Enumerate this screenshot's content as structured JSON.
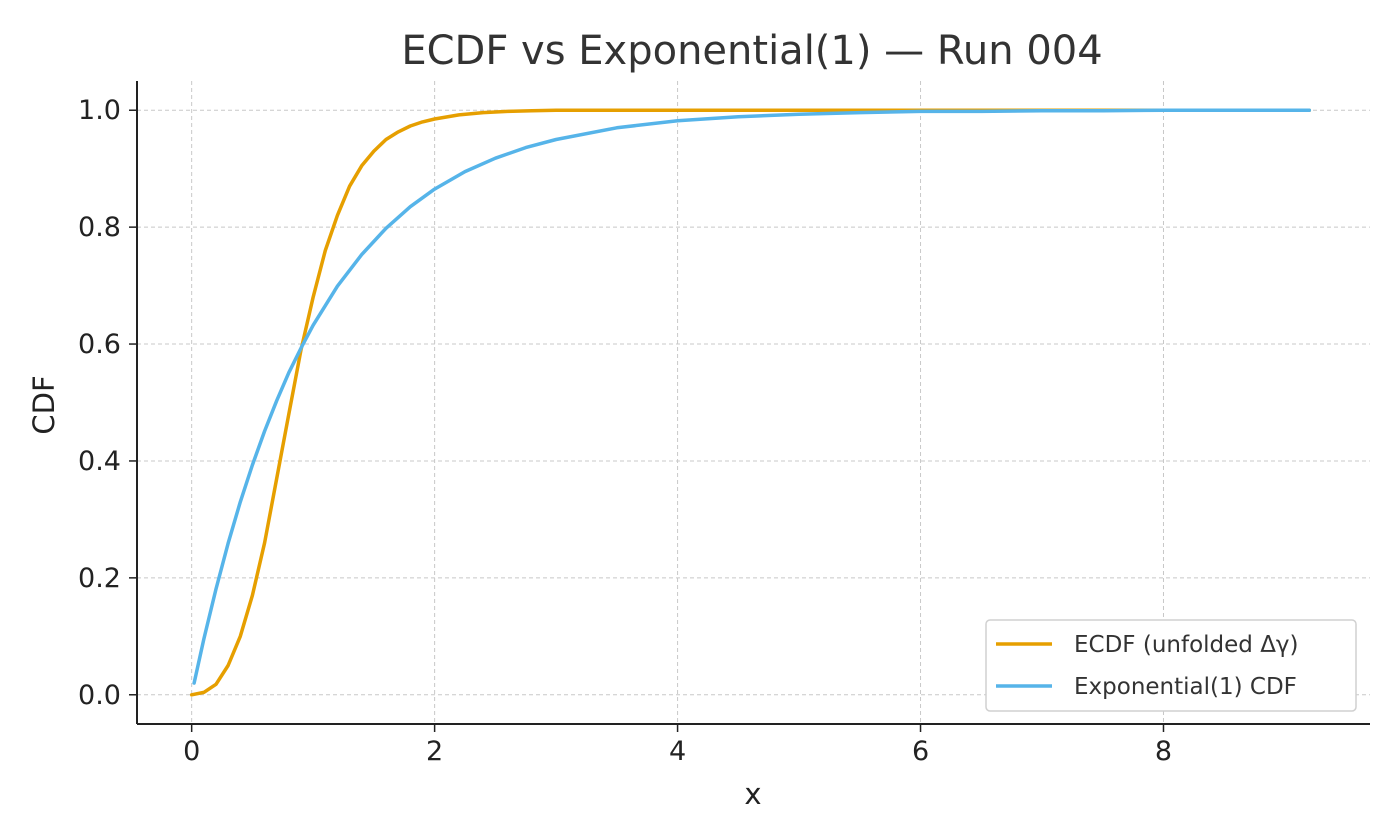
{
  "chart_data": {
    "type": "line",
    "title": "ECDF vs Exponential(1) — Run 004",
    "xlabel": "x",
    "ylabel": "CDF",
    "xlim": [
      -0.45,
      9.7
    ],
    "ylim": [
      -0.05,
      1.05
    ],
    "xticks": [
      0,
      2,
      4,
      6,
      8
    ],
    "xtick_labels": [
      "0",
      "2",
      "4",
      "6",
      "8"
    ],
    "yticks": [
      0.0,
      0.2,
      0.4,
      0.6,
      0.8,
      1.0
    ],
    "ytick_labels": [
      "0.0",
      "0.2",
      "0.4",
      "0.6",
      "0.8",
      "1.0"
    ],
    "grid": true,
    "legend_position": "bottom-right",
    "series": [
      {
        "name": "ECDF (unfolded Δγ)",
        "color": "#E69F00",
        "x": [
          0.0,
          0.1,
          0.2,
          0.3,
          0.4,
          0.5,
          0.6,
          0.7,
          0.8,
          0.9,
          1.0,
          1.1,
          1.2,
          1.3,
          1.4,
          1.5,
          1.6,
          1.7,
          1.8,
          1.9,
          2.0,
          2.2,
          2.4,
          2.6,
          2.8,
          3.0,
          3.5,
          4.0,
          5.0,
          6.0,
          7.0,
          8.0,
          9.2
        ],
        "y": [
          0.0,
          0.004,
          0.018,
          0.05,
          0.1,
          0.17,
          0.26,
          0.37,
          0.48,
          0.59,
          0.68,
          0.76,
          0.82,
          0.87,
          0.905,
          0.93,
          0.95,
          0.963,
          0.973,
          0.98,
          0.985,
          0.992,
          0.996,
          0.998,
          0.999,
          1.0,
          1.0,
          1.0,
          1.0,
          1.0,
          1.0,
          1.0,
          1.0
        ]
      },
      {
        "name": "Exponential(1) CDF",
        "color": "#56B4E9",
        "x": [
          0.02,
          0.1,
          0.2,
          0.3,
          0.4,
          0.5,
          0.6,
          0.7,
          0.8,
          0.9,
          1.0,
          1.2,
          1.4,
          1.6,
          1.8,
          2.0,
          2.25,
          2.5,
          2.75,
          3.0,
          3.5,
          4.0,
          4.5,
          5.0,
          5.5,
          6.0,
          6.5,
          7.0,
          7.5,
          8.0,
          8.5,
          9.2
        ],
        "y": [
          0.02,
          0.095,
          0.181,
          0.259,
          0.33,
          0.393,
          0.451,
          0.503,
          0.551,
          0.593,
          0.632,
          0.699,
          0.753,
          0.798,
          0.835,
          0.865,
          0.895,
          0.918,
          0.936,
          0.95,
          0.97,
          0.982,
          0.989,
          0.993,
          0.996,
          0.998,
          0.998,
          0.999,
          0.999,
          1.0,
          1.0,
          1.0
        ]
      }
    ]
  }
}
